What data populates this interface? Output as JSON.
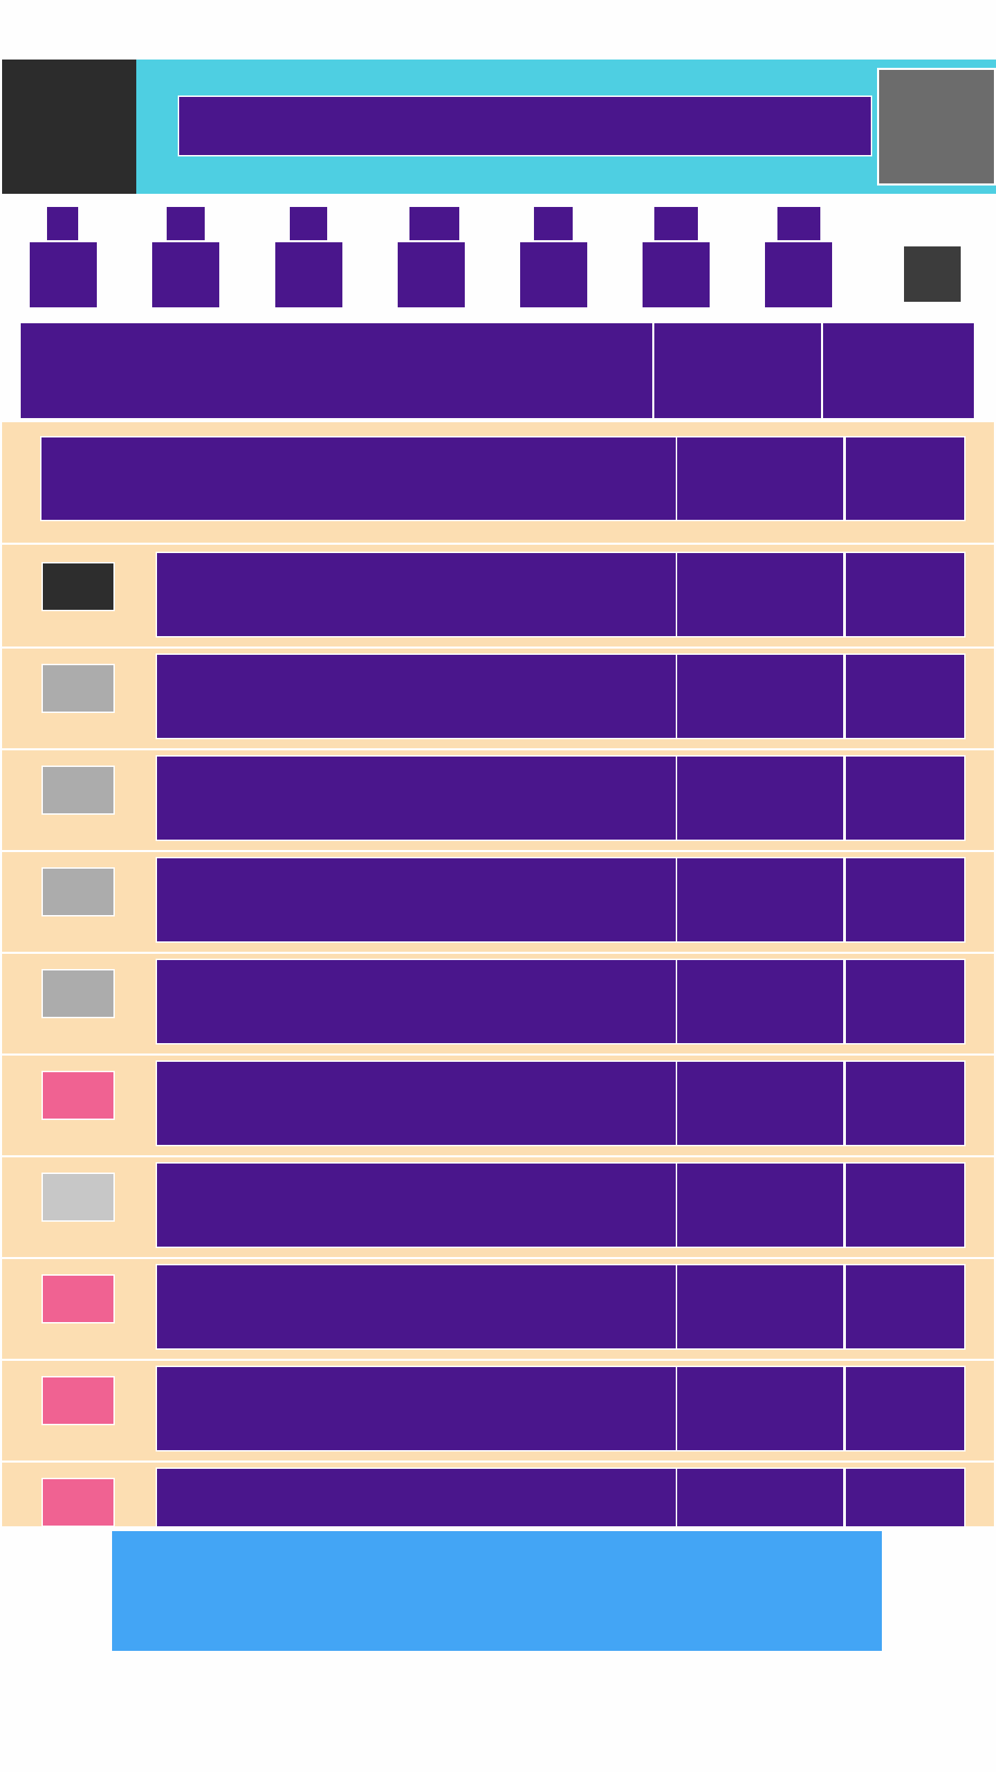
{
  "colors": {
    "purple": "#4a168c",
    "header_bg": "#4ecfe2",
    "logo_bg": "#2c2c2c",
    "avatar_bg": "#6c6c6c",
    "nav_extra": "#3c3c3c",
    "table_bg": "#fcdeb2",
    "footer_bg": "#43a5f5"
  },
  "header": {
    "logo_icon": "logo-icon",
    "search": {
      "value": "",
      "placeholder": ""
    },
    "avatar_icon": "avatar-icon"
  },
  "nav": {
    "items": [
      {
        "label": "",
        "caption": ""
      },
      {
        "label": "",
        "caption": ""
      },
      {
        "label": "",
        "caption": ""
      },
      {
        "label": "",
        "caption": ""
      },
      {
        "label": "",
        "caption": ""
      },
      {
        "label": "",
        "caption": ""
      },
      {
        "label": "",
        "caption": ""
      }
    ],
    "extra_icon": "more-icon"
  },
  "table": {
    "headers": [
      "",
      "",
      ""
    ],
    "group_row": [
      "",
      "",
      ""
    ],
    "rows": [
      {
        "color": "#2d2d2d",
        "cells": [
          "",
          "",
          ""
        ]
      },
      {
        "color": "#acacac",
        "cells": [
          "",
          "",
          ""
        ]
      },
      {
        "color": "#acacac",
        "cells": [
          "",
          "",
          ""
        ]
      },
      {
        "color": "#acacac",
        "cells": [
          "",
          "",
          ""
        ]
      },
      {
        "color": "#acacac",
        "cells": [
          "",
          "",
          ""
        ]
      },
      {
        "color": "#f06292",
        "cells": [
          "",
          "",
          ""
        ]
      },
      {
        "color": "#c7c7c7",
        "cells": [
          "",
          "",
          ""
        ]
      },
      {
        "color": "#f06292",
        "cells": [
          "",
          "",
          ""
        ]
      },
      {
        "color": "#f06292",
        "cells": [
          "",
          "",
          ""
        ]
      },
      {
        "color": "#f06292",
        "cells": [
          "",
          "",
          ""
        ]
      }
    ]
  },
  "footer": {
    "label": ""
  }
}
